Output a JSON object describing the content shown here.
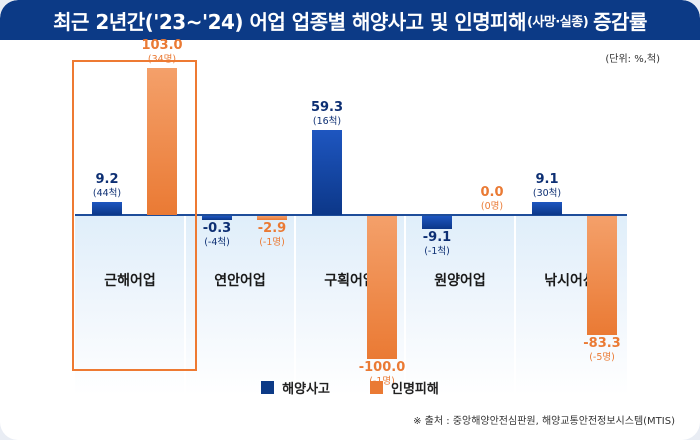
{
  "title": {
    "part1": "최근 2년간('23~'24) 어업 업종별 해양사고 및 인명피해",
    "part2": "(사망·실종)",
    "part3": "증감률"
  },
  "unit_note": "(단위: %,척)",
  "source": "※ 출처 : 중앙해양안전심판원, 해양교통안전정보시스템(MTIS)",
  "colors": {
    "ship": "#0c3a86",
    "people": "#ea7a34",
    "header": "#0c3a86",
    "highlight": "#ee7a32"
  },
  "chart_data": {
    "type": "bar",
    "categories": [
      "근해어업",
      "연안어업",
      "구획어업",
      "원양어업",
      "낚시어선"
    ],
    "highlighted_category": "근해어업",
    "series": [
      {
        "name": "해양사고",
        "values": [
          9.2,
          -0.3,
          59.3,
          -9.1,
          9.1
        ],
        "value_labels": [
          "9.2",
          "-0.3",
          "59.3",
          "-9.1",
          "9.1"
        ],
        "sub_labels": [
          "(44척)",
          "(-4척)",
          "(16척)",
          "(-1척)",
          "(30척)"
        ]
      },
      {
        "name": "인명피해",
        "values": [
          103.0,
          -2.9,
          -100.0,
          0.0,
          -83.3
        ],
        "value_labels": [
          "103.0",
          "-2.9",
          "-100.0",
          "0.0",
          "-83.3"
        ],
        "sub_labels": [
          "(34명)",
          "(-1명)",
          "(-1명)",
          "(0명)",
          "(-5명)"
        ]
      }
    ],
    "ylim": [
      -105,
      110
    ],
    "legend_position": "bottom"
  }
}
